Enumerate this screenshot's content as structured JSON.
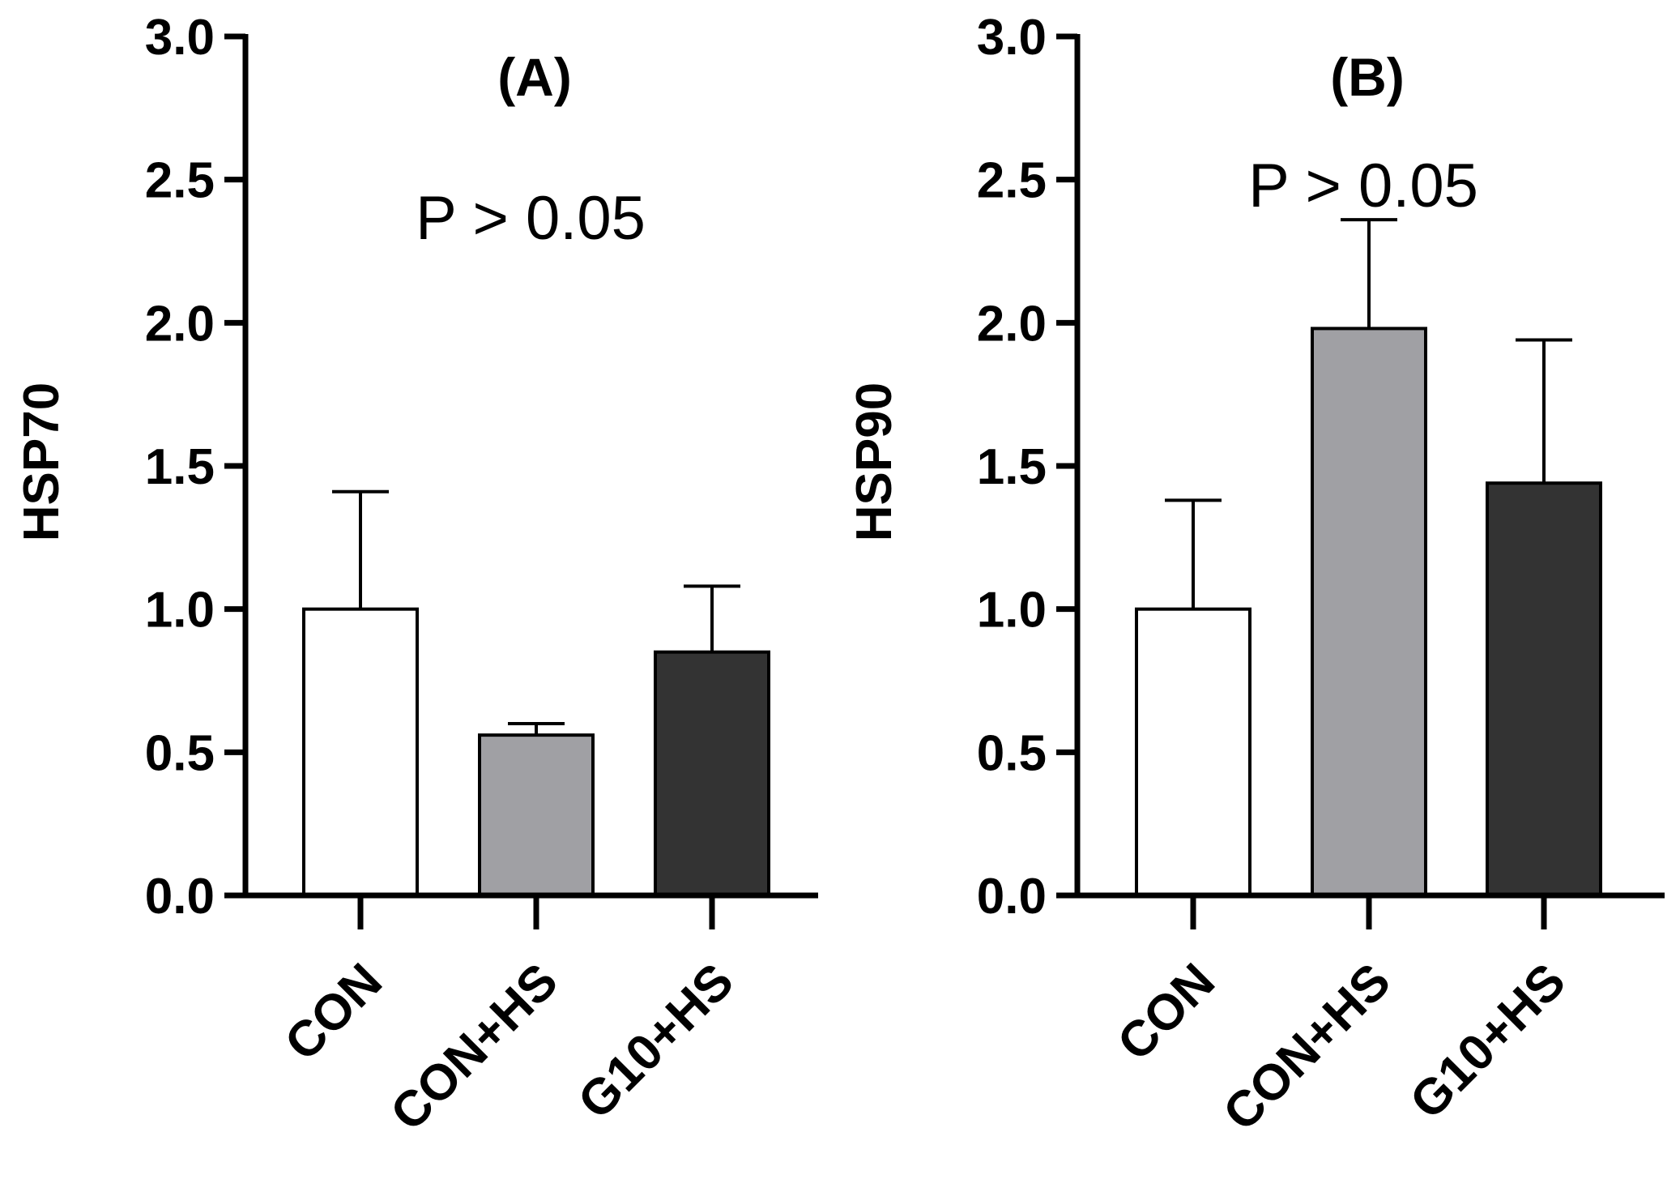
{
  "chart_data": [
    {
      "type": "bar",
      "title": "(A)",
      "annotation": "P > 0.05",
      "xlabel": "",
      "ylabel": "HSP70",
      "ylim": [
        0,
        3.0
      ],
      "yticks": [
        "0.0",
        "0.5",
        "1.0",
        "1.5",
        "2.0",
        "2.5",
        "3.0"
      ],
      "categories": [
        "CON",
        "CON+HS",
        "G10+HS"
      ],
      "values": [
        1.0,
        0.56,
        0.85
      ],
      "errors": [
        0.41,
        0.04,
        0.23
      ],
      "colors": [
        "#ffffff",
        "#a0a0a4",
        "#333333"
      ]
    },
    {
      "type": "bar",
      "title": "(B)",
      "annotation": "P > 0.05",
      "xlabel": "",
      "ylabel": "HSP90",
      "ylim": [
        0,
        3.0
      ],
      "yticks": [
        "0.0",
        "0.5",
        "1.0",
        "1.5",
        "2.0",
        "2.5",
        "3.0"
      ],
      "categories": [
        "CON",
        "CON+HS",
        "G10+HS"
      ],
      "values": [
        1.0,
        1.98,
        1.44
      ],
      "errors": [
        0.38,
        0.38,
        0.5
      ],
      "colors": [
        "#ffffff",
        "#a0a0a4",
        "#333333"
      ]
    }
  ]
}
